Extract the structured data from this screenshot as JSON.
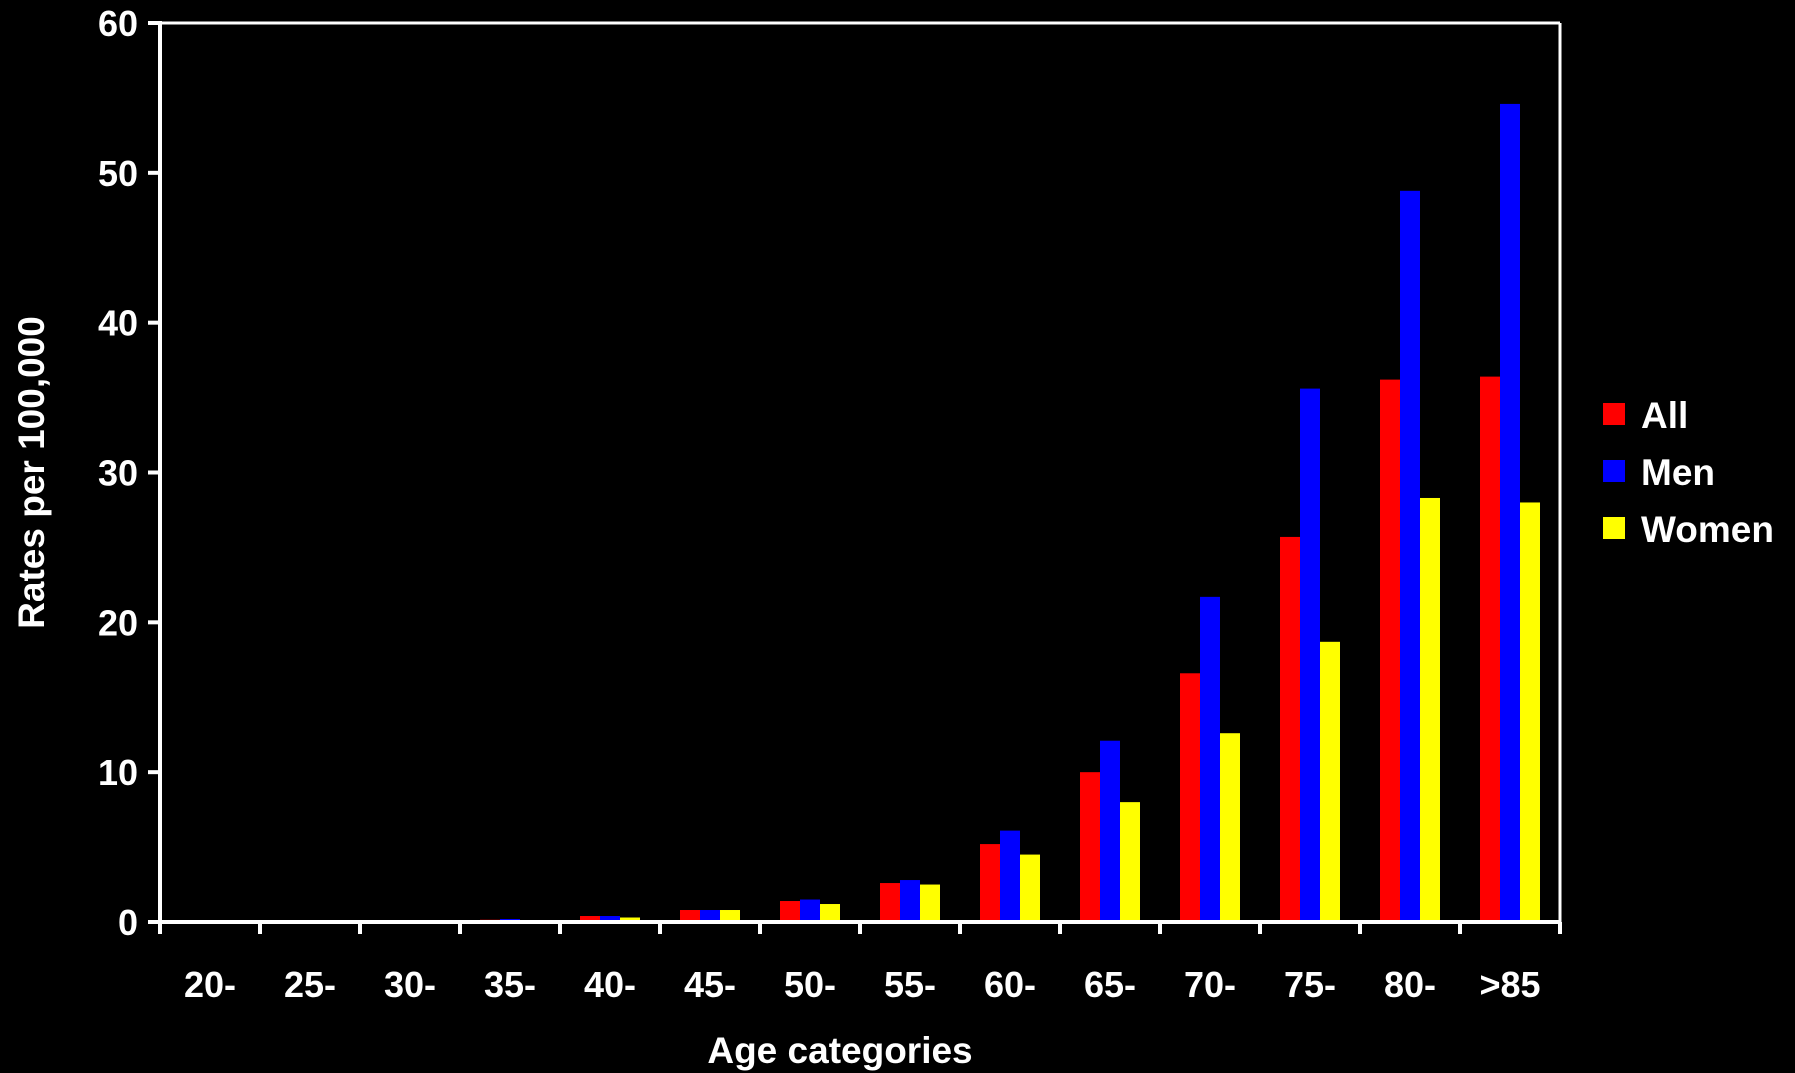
{
  "chart_data": {
    "type": "bar",
    "title": "",
    "xlabel": "Age categories",
    "ylabel": "Rates per 100,000",
    "ylim": [
      0,
      60
    ],
    "yticks": [
      0,
      10,
      20,
      30,
      40,
      50,
      60
    ],
    "categories": [
      "20-",
      "25-",
      "30-",
      "35-",
      "40-",
      "45-",
      "50-",
      "55-",
      "60-",
      "65-",
      "70-",
      "75-",
      "80-",
      ">85"
    ],
    "series": [
      {
        "name": "All",
        "color": "#ff0000",
        "values": [
          0.0,
          0.0,
          0.05,
          0.15,
          0.4,
          0.8,
          1.4,
          2.6,
          5.2,
          10.0,
          16.6,
          25.7,
          36.2,
          36.4
        ]
      },
      {
        "name": "Men",
        "color": "#0000ff",
        "values": [
          0.0,
          0.0,
          0.05,
          0.2,
          0.4,
          0.8,
          1.5,
          2.8,
          6.1,
          12.1,
          21.7,
          35.6,
          48.8,
          54.6
        ]
      },
      {
        "name": "Women",
        "color": "#ffff00",
        "values": [
          0.0,
          0.0,
          0.05,
          0.1,
          0.3,
          0.8,
          1.2,
          2.5,
          4.5,
          8.0,
          12.6,
          18.7,
          28.3,
          28.0
        ]
      }
    ],
    "legend_position": "right",
    "grid": false,
    "background": "#000000",
    "axis_color": "#ffffff"
  }
}
